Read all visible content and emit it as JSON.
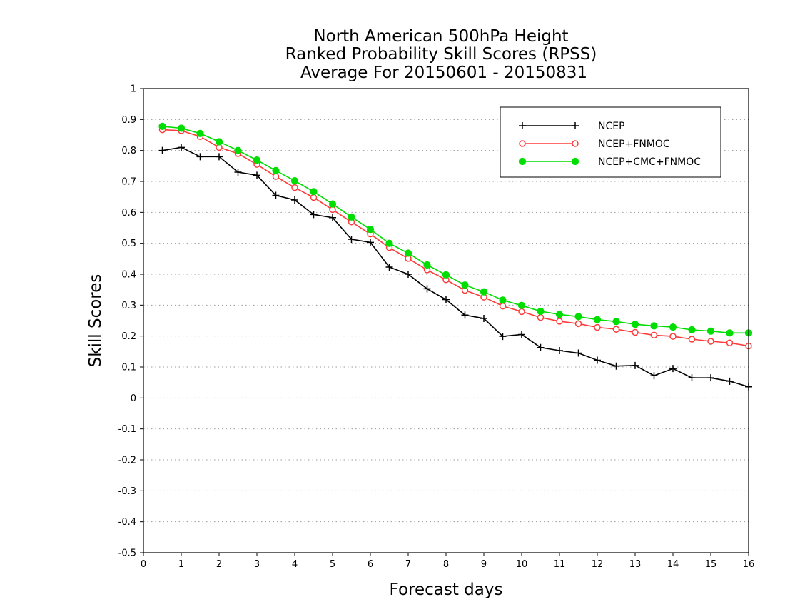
{
  "chart_data": {
    "type": "line",
    "title": [
      "North American 500hPa Height",
      "Ranked Probability Skill Scores (RPSS)",
      "Average For 20150601 - 20150831"
    ],
    "xlabel": "Forecast days",
    "ylabel": "Skill Scores",
    "xlim": [
      0,
      16
    ],
    "ylim": [
      -0.5,
      1
    ],
    "x_ticks": [
      "0",
      "1",
      "2",
      "3",
      "4",
      "5",
      "6",
      "7",
      "8",
      "9",
      "10",
      "11",
      "12",
      "13",
      "14",
      "15",
      "16"
    ],
    "y_ticks": [
      "-0.5",
      "-0.4",
      "-0.3",
      "-0.2",
      "-0.1",
      "0",
      "0.1",
      "0.2",
      "0.3",
      "0.4",
      "0.5",
      "0.6",
      "0.7",
      "0.8",
      "0.9",
      "1"
    ],
    "grid": "horizontal dotted",
    "legend_position": "top-right",
    "x": [
      0.5,
      1,
      1.5,
      2,
      2.5,
      3,
      3.5,
      4,
      4.5,
      5,
      5.5,
      6,
      6.5,
      7,
      7.5,
      8,
      8.5,
      9,
      9.5,
      10,
      10.5,
      11,
      11.5,
      12,
      12.5,
      13,
      13.5,
      14,
      14.5,
      15,
      15.5,
      16
    ],
    "series": [
      {
        "name": "NCEP",
        "color": "#000000",
        "marker": "plus",
        "values": [
          0.8,
          0.81,
          0.78,
          0.78,
          0.73,
          0.72,
          0.655,
          0.64,
          0.593,
          0.583,
          0.513,
          0.503,
          0.423,
          0.4,
          0.353,
          0.318,
          0.268,
          0.257,
          0.199,
          0.205,
          0.163,
          0.153,
          0.145,
          0.122,
          0.103,
          0.105,
          0.072,
          0.095,
          0.065,
          0.065,
          0.054,
          0.036
        ]
      },
      {
        "name": "NCEP+FNMOC",
        "color": "#ff3a3a",
        "marker": "open-circle",
        "values": [
          0.867,
          0.864,
          0.845,
          0.81,
          0.79,
          0.755,
          0.716,
          0.68,
          0.648,
          0.609,
          0.569,
          0.53,
          0.486,
          0.451,
          0.414,
          0.382,
          0.348,
          0.326,
          0.297,
          0.279,
          0.26,
          0.248,
          0.24,
          0.228,
          0.222,
          0.212,
          0.203,
          0.199,
          0.19,
          0.183,
          0.178,
          0.168
        ]
      },
      {
        "name": "NCEP+CMC+FNMOC",
        "color": "#00dd00",
        "marker": "filled-circle",
        "values": [
          0.878,
          0.872,
          0.855,
          0.828,
          0.8,
          0.769,
          0.735,
          0.702,
          0.667,
          0.627,
          0.585,
          0.545,
          0.5,
          0.468,
          0.43,
          0.398,
          0.365,
          0.343,
          0.316,
          0.299,
          0.28,
          0.27,
          0.263,
          0.253,
          0.247,
          0.238,
          0.233,
          0.229,
          0.22,
          0.216,
          0.21,
          0.21
        ]
      }
    ]
  }
}
